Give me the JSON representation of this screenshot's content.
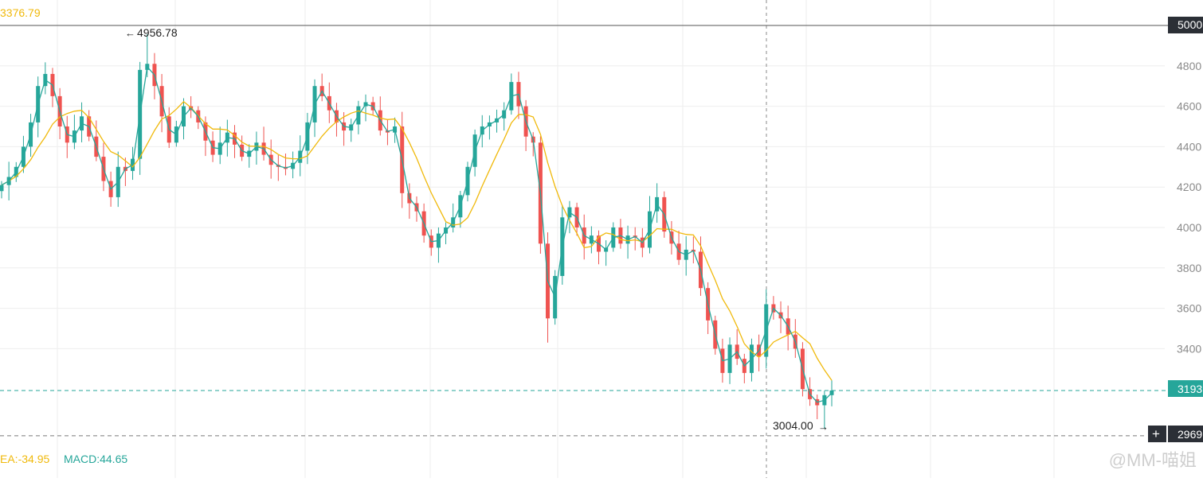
{
  "header": {
    "ma_value_label": "3376.79"
  },
  "badges": {
    "resistance": "5000",
    "last_price": "3193",
    "crosshair": "2969",
    "plus_icon": "+"
  },
  "annotations": {
    "high_label": "4956.78",
    "low_label": "3004.00"
  },
  "indicator": {
    "dea_label": "EA:-34.95",
    "macd_label": "MACD:44.65"
  },
  "watermark": "@MM-喵姐",
  "colors": {
    "up": "#26a69a",
    "down": "#ef5350",
    "ma": "#f0b90b",
    "ma_fast": "#26a69a",
    "axis_text": "#8a8a8a",
    "grid": "#eeeeee",
    "badge_dark": "#2b2f36",
    "badge_green": "#26a69a"
  },
  "chart_data": {
    "type": "candlestick",
    "y_axis_ticks": [
      3400,
      3600,
      3800,
      4000,
      4200,
      4400,
      4600,
      4800,
      5000
    ],
    "ylim": [
      2900,
      5150
    ],
    "horizontal_lines": [
      5000,
      3193,
      2969
    ],
    "marked_high": 4956.78,
    "marked_low": 3004.0,
    "close_series": [
      4210,
      4250,
      4300,
      4400,
      4520,
      4700,
      4760,
      4650,
      4500,
      4420,
      4480,
      4550,
      4450,
      4350,
      4230,
      4150,
      4300,
      4280,
      4340,
      4780,
      4810,
      4700,
      4550,
      4420,
      4500,
      4600,
      4580,
      4520,
      4430,
      4360,
      4420,
      4470,
      4410,
      4350,
      4380,
      4420,
      4360,
      4310,
      4300,
      4290,
      4320,
      4380,
      4520,
      4700,
      4650,
      4580,
      4520,
      4480,
      4510,
      4600,
      4620,
      4580,
      4480,
      4470,
      4500,
      4170,
      4120,
      4080,
      3960,
      3900,
      3970,
      4000,
      4050,
      4160,
      4300,
      4460,
      4500,
      4520,
      4540,
      4580,
      4720,
      4600,
      4450,
      4420,
      3920,
      3550,
      3760,
      4050,
      4100,
      4000,
      3920,
      3960,
      3880,
      3900,
      4000,
      3920,
      3960,
      3950,
      3900,
      4080,
      4150,
      3980,
      3920,
      3840,
      3890,
      3880,
      3700,
      3540,
      3400,
      3280,
      3420,
      3350,
      3280,
      3420,
      3360,
      3620,
      3580,
      3550,
      3470,
      3400,
      3200,
      3150,
      3120,
      3170,
      3193
    ]
  }
}
